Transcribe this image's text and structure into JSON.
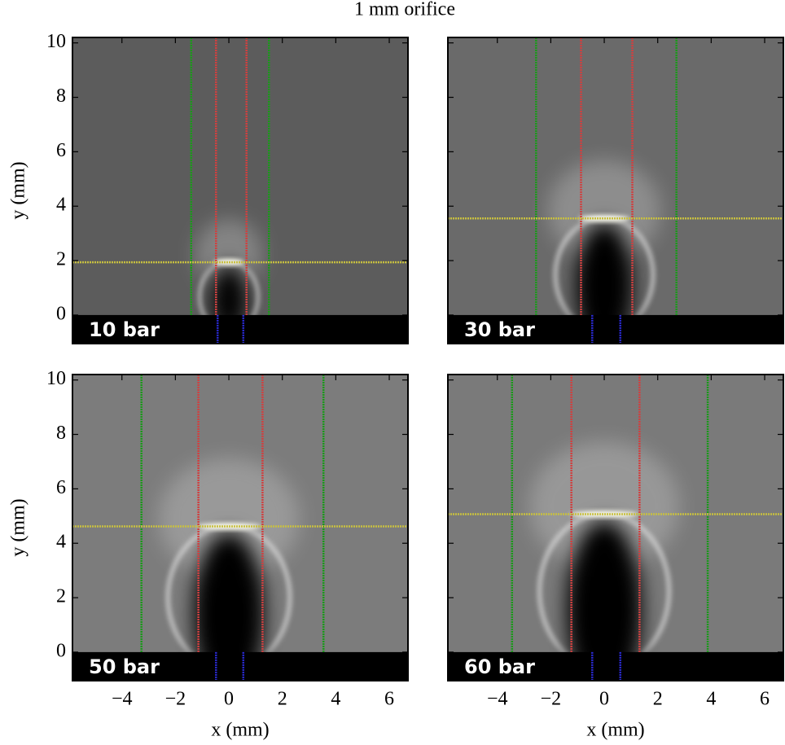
{
  "title": "1 mm orifice",
  "chart_data": [
    {
      "type": "image",
      "label": "10 bar",
      "background": "#5c5c5c",
      "ylabel": "y (mm)",
      "xlim": [
        -5.85,
        6.7
      ],
      "ylim": [
        -1.05,
        10.2
      ],
      "xticks": [
        -4,
        -2,
        0,
        2,
        4,
        6
      ],
      "yticks": [
        0,
        2,
        4,
        6,
        8,
        10
      ],
      "vlines": [
        {
          "color": "#1a9a1a",
          "x": [
            -1.41,
            1.5
          ]
        },
        {
          "color": "#d04040",
          "x": [
            -0.48,
            0.66
          ]
        },
        {
          "color": "#2a2ad0",
          "x": [
            -0.42,
            0.54
          ]
        }
      ],
      "hline": {
        "color": "#c8c040",
        "y": 1.94
      }
    },
    {
      "type": "image",
      "label": "30 bar",
      "background": "#6a6a6a",
      "xlim": [
        -5.85,
        6.7
      ],
      "ylim": [
        -1.05,
        10.2
      ],
      "xticks": [
        -4,
        -2,
        0,
        2,
        4,
        6
      ],
      "yticks": [
        0,
        2,
        4,
        6,
        8,
        10
      ],
      "vlines": [
        {
          "color": "#1a9a1a",
          "x": [
            -2.55,
            2.7
          ]
        },
        {
          "color": "#d04040",
          "x": [
            -0.87,
            1.05
          ]
        },
        {
          "color": "#2a2ad0",
          "x": [
            -0.45,
            0.6
          ]
        }
      ],
      "hline": {
        "color": "#c8c040",
        "y": 3.55
      }
    },
    {
      "type": "image",
      "label": "50 bar",
      "background": "#7c7c7c",
      "xlabel": "x (mm)",
      "ylabel": "y (mm)",
      "xlim": [
        -5.85,
        6.7
      ],
      "ylim": [
        -1.05,
        10.2
      ],
      "xticks": [
        {
          "value": -4,
          "label": "−4"
        },
        {
          "value": -2,
          "label": "−2"
        },
        0,
        2,
        4,
        6
      ],
      "yticks": [
        0,
        2,
        4,
        6,
        8,
        10
      ],
      "vlines": [
        {
          "color": "#1a9a1a",
          "x": [
            -3.27,
            3.54
          ]
        },
        {
          "color": "#d04040",
          "x": [
            -1.14,
            1.26
          ]
        },
        {
          "color": "#2a2ad0",
          "x": [
            -0.48,
            0.54
          ]
        }
      ],
      "hline": {
        "color": "#c8c040",
        "y": 4.62
      }
    },
    {
      "type": "image",
      "label": "60 bar",
      "background": "#7a7a7a",
      "xlabel": "x (mm)",
      "xlim": [
        -5.85,
        6.7
      ],
      "ylim": [
        -1.05,
        10.2
      ],
      "xticks": [
        {
          "value": -4,
          "label": "−4"
        },
        {
          "value": -2,
          "label": "−2"
        },
        0,
        2,
        4,
        6
      ],
      "yticks": [
        0,
        2,
        4,
        6,
        8,
        10
      ],
      "vlines": [
        {
          "color": "#1a9a1a",
          "x": [
            -3.45,
            3.87
          ]
        },
        {
          "color": "#d04040",
          "x": [
            -1.23,
            1.32
          ]
        },
        {
          "color": "#2a2ad0",
          "x": [
            -0.45,
            0.6
          ]
        }
      ],
      "hline": {
        "color": "#c8c040",
        "y": 5.07
      }
    }
  ]
}
